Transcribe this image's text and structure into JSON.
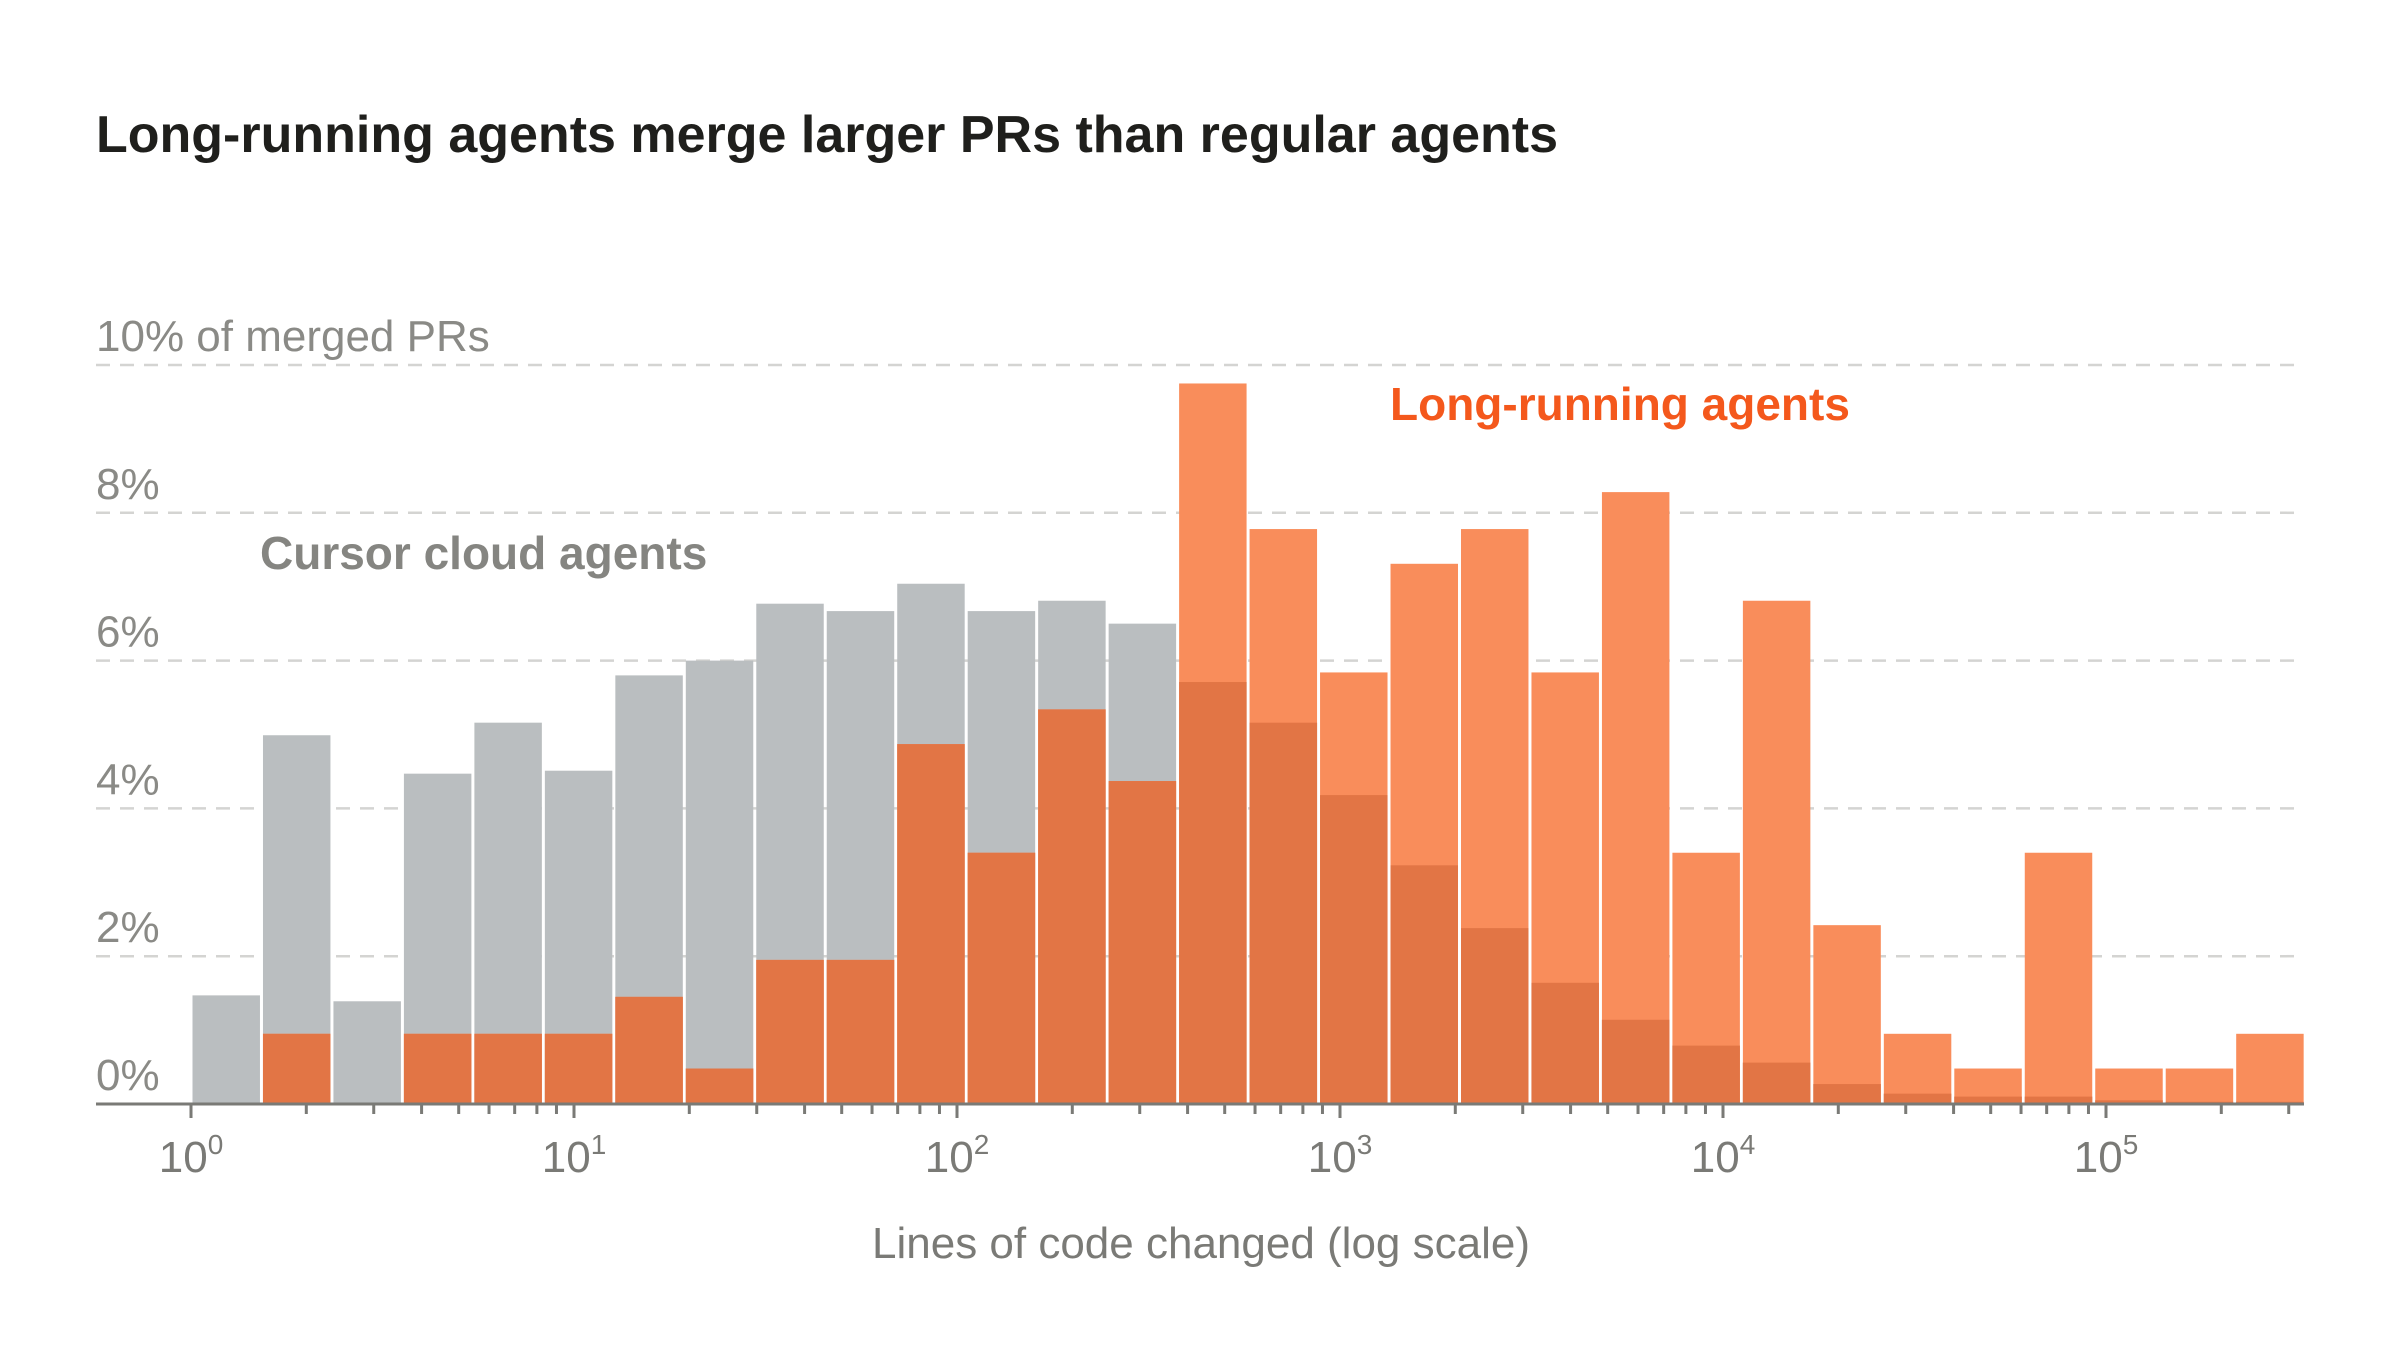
{
  "chart_data": {
    "type": "bar",
    "title": "Long-running agents merge larger PRs than regular agents",
    "xlabel": "Lines of code changed (log scale)",
    "ylabel": "",
    "x_scale": "log",
    "xlim_log10": [
      0,
      5.52
    ],
    "bin_width_log10": 0.184,
    "ylim": [
      0,
      10
    ],
    "y_ticks": [
      0,
      2,
      4,
      6,
      8,
      10
    ],
    "y_tick_labels": [
      "0%",
      "2%",
      "4%",
      "6%",
      "8%",
      "10% of merged PRs"
    ],
    "x_ticks": [
      {
        "base": "10",
        "exp": "0"
      },
      {
        "base": "10",
        "exp": "1"
      },
      {
        "base": "10",
        "exp": "2"
      },
      {
        "base": "10",
        "exp": "3"
      },
      {
        "base": "10",
        "exp": "4"
      },
      {
        "base": "10",
        "exp": "5"
      }
    ],
    "grid": "horizontal dashed",
    "series": [
      {
        "name": "Cursor cloud agents",
        "color": "#BABEC0",
        "values": [
          1.47,
          4.99,
          1.39,
          4.47,
          5.16,
          4.51,
          5.8,
          6.0,
          6.77,
          6.67,
          7.04,
          6.67,
          6.81,
          6.5,
          5.71,
          5.16,
          4.18,
          3.23,
          2.38,
          1.64,
          1.14,
          0.79,
          0.56,
          0.27,
          0.14,
          0.1,
          0.1,
          0.05,
          0.03,
          0.03
        ]
      },
      {
        "name": "Long-running agents",
        "color": "#F98D5B",
        "label_color": "#F4581C",
        "values": [
          0,
          0.95,
          0,
          0.95,
          0.95,
          0.95,
          1.45,
          0.48,
          1.95,
          1.95,
          4.87,
          3.4,
          5.34,
          4.37,
          9.75,
          7.78,
          5.84,
          7.31,
          7.78,
          5.84,
          8.28,
          3.4,
          6.81,
          2.42,
          0.95,
          0.48,
          3.4,
          0.48,
          0.48,
          0.95
        ]
      }
    ],
    "overlap_color": "#E27545"
  }
}
